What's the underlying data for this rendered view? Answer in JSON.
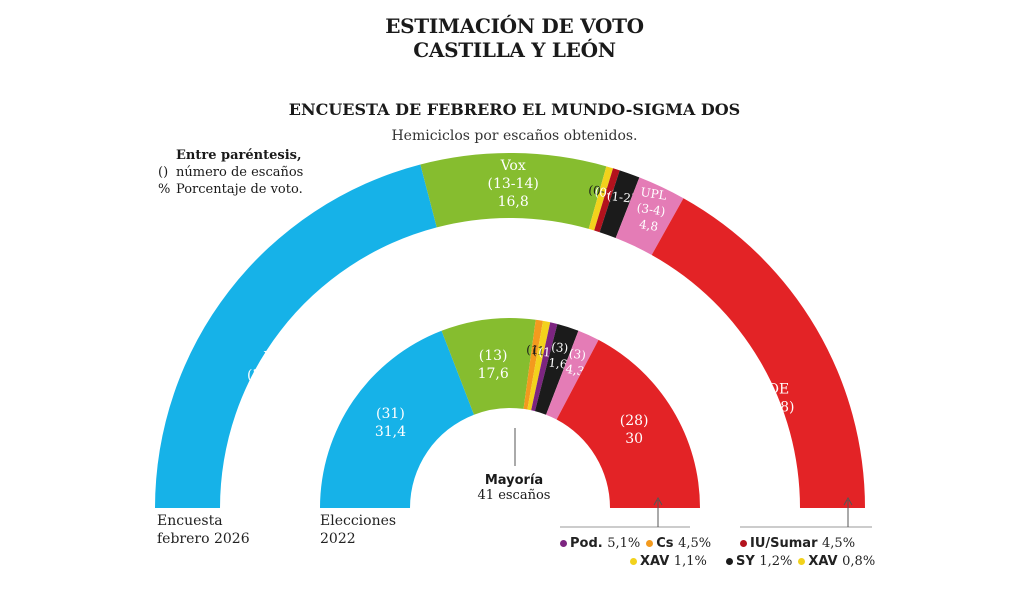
{
  "header": {
    "title_line1": "ESTIMACIÓN DE VOTO",
    "title_line2": "CASTILLA Y LEÓN",
    "subtitle": "ENCUESTA DE FEBRERO EL MUNDO-SIGMA DOS",
    "description": "Hemiciclos por escaños obtenidos."
  },
  "legend_note": {
    "heading": "Entre paréntesis,",
    "paren_symbol": "()",
    "paren_text": "número de escaños",
    "pct_symbol": "%",
    "pct_text": "Porcentaje de voto."
  },
  "colors": {
    "PP": "#16b2e8",
    "Vox": "#86bd2f",
    "Cs": "#f39a1e",
    "XAV": "#f2d21c",
    "IU/Sumar": "#b3121d",
    "Pod.": "#7c2580",
    "SY": "#1b1b1b",
    "UPL": "#e47cb6",
    "PSOE": "#e32326"
  },
  "chart_data": [
    {
      "type": "pie",
      "name": "Encuesta febrero 2026",
      "label": "Encuesta\nfebrero 2026",
      "slices": [
        {
          "party": "PP",
          "seats": "32-35",
          "pct": 35.8,
          "text": [
            "PP",
            "(32-35)",
            "35,8%"
          ]
        },
        {
          "party": "Vox",
          "seats": "13-14",
          "pct": 16.8,
          "text": [
            "Vox",
            "(13-14)",
            "16,8"
          ]
        },
        {
          "party": "XAV",
          "seats": "0-1",
          "pct": 0.8,
          "text": [
            "(0-1)"
          ]
        },
        {
          "party": "IU/Sumar",
          "seats": "0-1",
          "pct": 4.5,
          "text": [
            "(0-1)"
          ]
        },
        {
          "party": "SY",
          "seats": "1-2",
          "pct": 1.2,
          "text": [
            "(1-2)"
          ]
        },
        {
          "party": "UPL",
          "seats": "3-4",
          "pct": 4.8,
          "text": [
            "UPL",
            "(3-4)",
            "4,8"
          ]
        },
        {
          "party": "PSOE",
          "seats": "26-28",
          "pct": 29.8,
          "text": [
            "PSOE",
            "(26-28)",
            "29,8"
          ]
        }
      ]
    },
    {
      "type": "pie",
      "name": "Elecciones 2022",
      "label": "Elecciones\n2022",
      "slices": [
        {
          "party": "PP",
          "seats": 31,
          "pct": 31.4,
          "text": [
            "(31)",
            "31,4"
          ]
        },
        {
          "party": "Vox",
          "seats": 13,
          "pct": 17.6,
          "text": [
            "(13)",
            "17,6"
          ]
        },
        {
          "party": "Cs",
          "seats": 1,
          "pct": 4.5,
          "text": [
            "(1)"
          ]
        },
        {
          "party": "XAV",
          "seats": 1,
          "pct": 1.1,
          "text": [
            "(1)"
          ]
        },
        {
          "party": "Pod.",
          "seats": 1,
          "pct": 5.1,
          "text": [
            "(1)"
          ]
        },
        {
          "party": "SY",
          "seats": 3,
          "pct": 1.6,
          "text": [
            "(3)",
            "1,6"
          ]
        },
        {
          "party": "UPL",
          "seats": 3,
          "pct": 4.3,
          "text": [
            "(3)",
            "4,3"
          ]
        },
        {
          "party": "PSOE",
          "seats": 28,
          "pct": 30,
          "text": [
            "(28)",
            "30"
          ]
        }
      ]
    }
  ],
  "majority": {
    "label": "Mayoría",
    "value": "41 escaños"
  },
  "footnotes_2022": [
    {
      "party": "Pod.",
      "text": "5,1%"
    },
    {
      "party": "Cs",
      "text": "4,5%"
    },
    {
      "party": "XAV",
      "text": "1,1%"
    }
  ],
  "footnotes_2026": [
    {
      "party": "IU/Sumar",
      "text": "4,5%"
    },
    {
      "party": "SY",
      "text": "1,2%"
    },
    {
      "party": "XAV",
      "text": "0,8%"
    }
  ]
}
